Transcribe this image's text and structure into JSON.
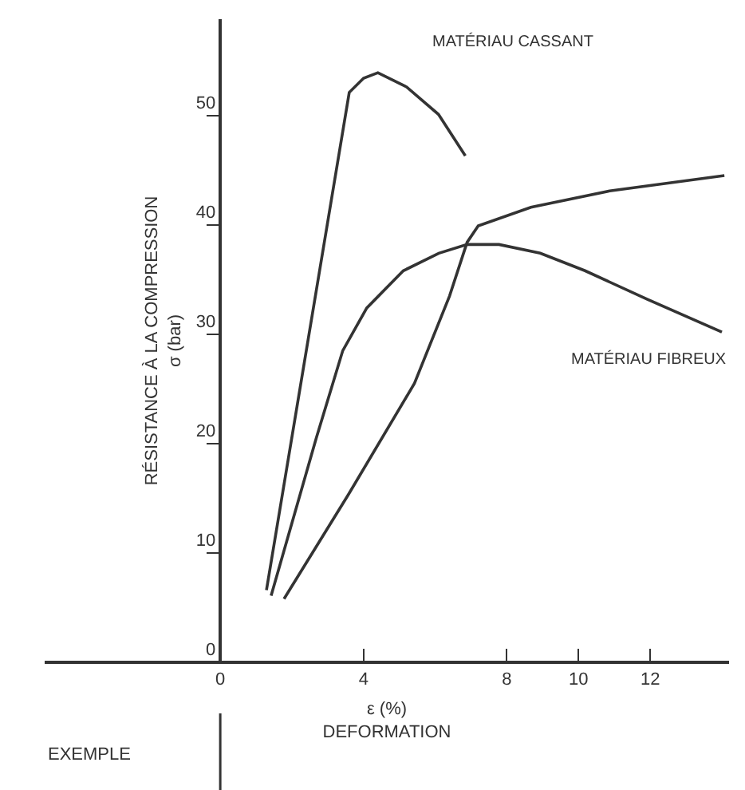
{
  "chart_data": {
    "type": "line",
    "xlabel": "ε (%)\nDEFORMATION",
    "ylabel": "RÉSISTANCE À LA COMPRESSION\nσ (bar)",
    "xlim": [
      -4.9,
      14.2
    ],
    "ylim": [
      0,
      58.8
    ],
    "xticks": [
      0,
      4,
      8,
      10,
      12
    ],
    "yticks": [
      0,
      10,
      20,
      30,
      40,
      50
    ],
    "grid": false,
    "marker": "none",
    "line_style": "solid",
    "series": [
      {
        "color": "#333333",
        "x": [
          1.29,
          3.6,
          4.0,
          4.4,
          5.2,
          6.09,
          6.84
        ],
        "values": [
          6.6,
          52.1,
          53.4,
          53.9,
          52.6,
          50.1,
          46.3
        ]
      },
      {
        "color": "#333333",
        "x": [
          1.42,
          2.68,
          3.42,
          4.09,
          5.11,
          6.1,
          6.89,
          7.78,
          8.93,
          10.18,
          11.91,
          14.0
        ],
        "values": [
          6.1,
          20.5,
          28.5,
          32.4,
          35.8,
          37.4,
          38.2,
          38.2,
          37.4,
          35.8,
          33.2,
          30.2
        ]
      },
      {
        "color": "#333333",
        "x": [
          1.78,
          3.57,
          5.42,
          6.4,
          6.89,
          7.2,
          8.67,
          10.87,
          14.07
        ],
        "values": [
          5.8,
          15.3,
          25.5,
          33.5,
          38.4,
          39.9,
          41.6,
          43.1,
          44.5
        ]
      }
    ],
    "annotations": [
      "MATÉRIAU CASSANT",
      "MATÉRIAU FIBREUX",
      "EXEMPLE"
    ]
  }
}
